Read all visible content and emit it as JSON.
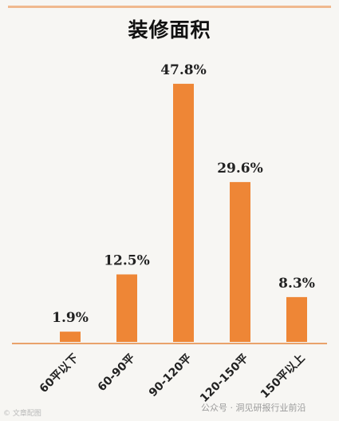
{
  "chart_data": {
    "type": "bar",
    "title": "装修面积",
    "categories": [
      "60平以下",
      "60-90平",
      "90-120平",
      "120-150平",
      "150平以上"
    ],
    "values": [
      1.9,
      12.5,
      47.8,
      29.6,
      8.3
    ],
    "value_labels": [
      "1.9%",
      "12.5%",
      "47.8%",
      "29.6%",
      "8.3%"
    ],
    "xlabel": "",
    "ylabel": "",
    "ylim": [
      0,
      50
    ],
    "grid": false,
    "legend": "none",
    "bar_color": "#ee8636",
    "axis_color": "#e9a26b"
  },
  "watermark": {
    "left_text": "© 文章配图",
    "right_text": "公众号 · 洞见研报行业前沿"
  }
}
